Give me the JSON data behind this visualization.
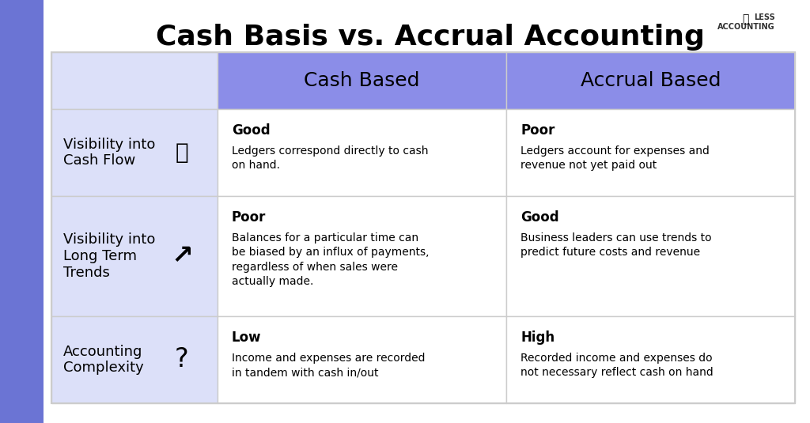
{
  "title": "Cash Basis vs. Accrual Accounting",
  "title_fontsize": 26,
  "bg_color": "#ffffff",
  "left_bar_color": "#6b74d4",
  "header_color": "#8b8de8",
  "cell_light_color": "#dce0f9",
  "cell_white_color": "#ffffff",
  "left_sidebar_color": "#6b74d4",
  "col_headers": [
    "Cash Based",
    "Accrual Based"
  ],
  "row_labels": [
    "Visibility into\nCash Flow",
    "Visibility into\nLong Term\nTrends",
    "Accounting\nComplexity"
  ],
  "row_icons": [
    "🔍",
    "↗",
    "?"
  ],
  "cash_bold": [
    "Good",
    "Poor",
    "Low"
  ],
  "cash_text": [
    "Ledgers correspond directly to cash\non hand.",
    "Balances for a particular time can\nbe biased by an influx of payments,\nregardless of when sales were\nactually made.",
    "Income and expenses are recorded\nin tandem with cash in/out"
  ],
  "accrual_bold": [
    "Poor",
    "Good",
    "High"
  ],
  "accrual_text": [
    "Ledgers account for expenses and\nrevenue not yet paid out",
    "Business leaders can use trends to\npredict future costs and revenue",
    "Recorded income and expenses do\nnot necessary reflect cash on hand"
  ]
}
